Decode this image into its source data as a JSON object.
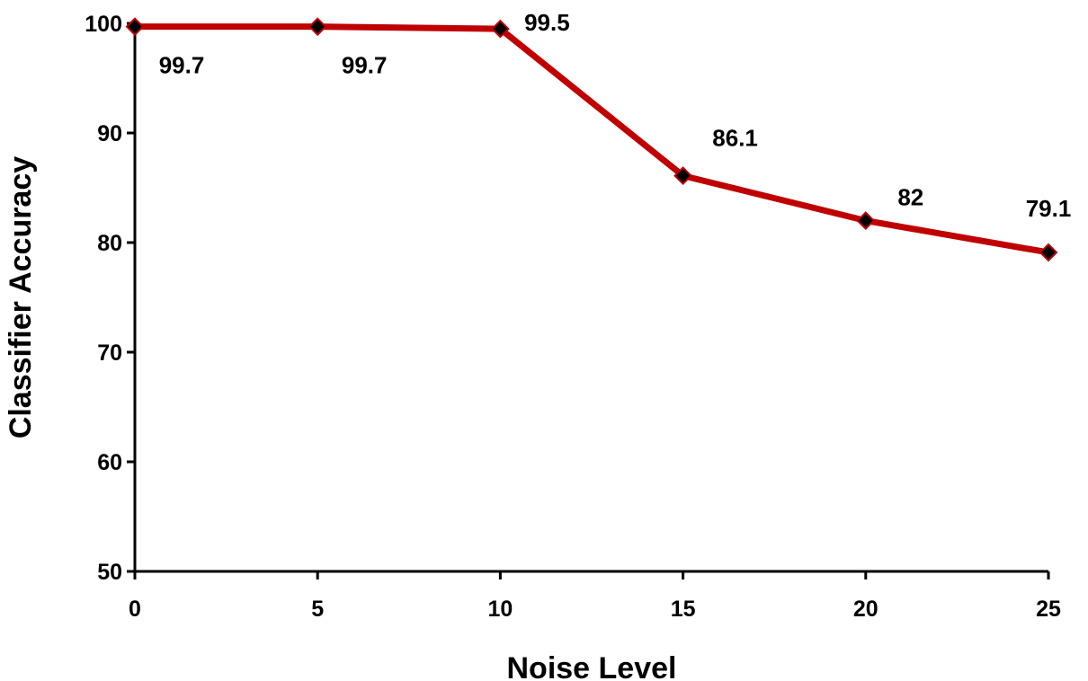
{
  "chart_data": {
    "type": "line",
    "title": "",
    "xlabel": "Noise Level",
    "ylabel": "Classifier Accuracy",
    "x": [
      0,
      5,
      10,
      15,
      20,
      25
    ],
    "xlim": [
      0,
      25
    ],
    "ylim": [
      50,
      100
    ],
    "xticks": [
      0,
      5,
      10,
      15,
      20,
      25
    ],
    "yticks": [
      50,
      60,
      70,
      80,
      90,
      100
    ],
    "grid": false,
    "legend": "none",
    "series": [
      {
        "values": [
          99.7,
          99.7,
          99.5,
          86.1,
          82,
          79.1
        ],
        "data_labels": [
          "99.7",
          "99.7",
          "99.5",
          "86.1",
          "82",
          "79.1"
        ],
        "line_color": "#c00000",
        "marker": "diamond",
        "marker_color": "#000000"
      }
    ]
  }
}
